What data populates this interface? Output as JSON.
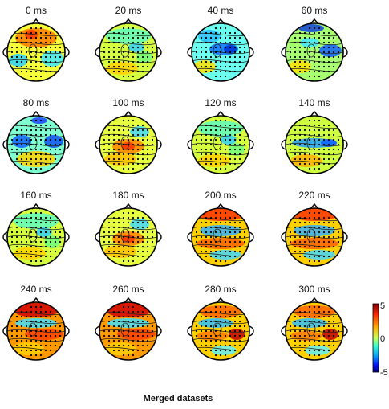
{
  "figure": {
    "title": "Merged datasets"
  },
  "maps": [
    {
      "label": "0 ms",
      "pattern": "front-warm"
    },
    {
      "label": "20 ms",
      "pattern": "neutral"
    },
    {
      "label": "40 ms",
      "pattern": "cool-center"
    },
    {
      "label": "60 ms",
      "pattern": "cool-right"
    },
    {
      "label": "80 ms",
      "pattern": "cool-mixed"
    },
    {
      "label": "100 ms",
      "pattern": "warm-center"
    },
    {
      "label": "120 ms",
      "pattern": "neutral"
    },
    {
      "label": "140 ms",
      "pattern": "cool-band"
    },
    {
      "label": "160 ms",
      "pattern": "neutral"
    },
    {
      "label": "180 ms",
      "pattern": "warm-center"
    },
    {
      "label": "200 ms",
      "pattern": "warm-top"
    },
    {
      "label": "220 ms",
      "pattern": "warm-top"
    },
    {
      "label": "240 ms",
      "pattern": "warm-strong"
    },
    {
      "label": "260 ms",
      "pattern": "warm-strong"
    },
    {
      "label": "280 ms",
      "pattern": "warm-right"
    },
    {
      "label": "300 ms",
      "pattern": "warm-right"
    }
  ],
  "colorbar": {
    "ticks": [
      "5",
      "0",
      "-5"
    ],
    "colors": [
      "#7f0000",
      "#ff3000",
      "#ffb000",
      "#d8ff40",
      "#40ffc8",
      "#00a0ff",
      "#0020ff",
      "#00007f"
    ]
  }
}
